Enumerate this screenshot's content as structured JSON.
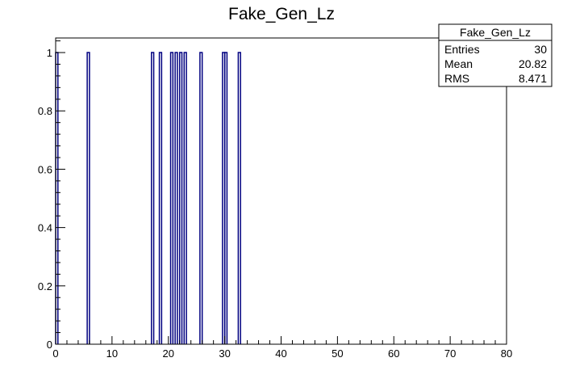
{
  "chart_data": {
    "type": "bar",
    "title": "Fake_Gen_Lz",
    "xlim": [
      0,
      80
    ],
    "ylim": [
      0,
      1.05
    ],
    "bin_width": 0.4,
    "x_ticks": [
      0,
      10,
      20,
      30,
      40,
      50,
      60,
      70,
      80
    ],
    "y_ticks": [
      0,
      0.2,
      0.4,
      0.6,
      0.8,
      1
    ],
    "y_tick_labels": [
      "0",
      "0.2",
      "0.4",
      "0.6",
      "0.8",
      "1"
    ],
    "bins": [
      {
        "x": 0.2,
        "y": 1
      },
      {
        "x": 5.8,
        "y": 1
      },
      {
        "x": 17.2,
        "y": 1
      },
      {
        "x": 18.6,
        "y": 1
      },
      {
        "x": 20.6,
        "y": 1
      },
      {
        "x": 21.4,
        "y": 1
      },
      {
        "x": 22.2,
        "y": 1
      },
      {
        "x": 23.0,
        "y": 1
      },
      {
        "x": 25.8,
        "y": 1
      },
      {
        "x": 29.8,
        "y": 1
      },
      {
        "x": 30.2,
        "y": 1
      },
      {
        "x": 32.6,
        "y": 1
      }
    ],
    "line_color": "#000080",
    "stats": {
      "title": "Fake_Gen_Lz",
      "rows": [
        {
          "label": "Entries",
          "value": "30"
        },
        {
          "label": "Mean",
          "value": "20.82"
        },
        {
          "label": "RMS",
          "value": "8.471"
        }
      ]
    }
  }
}
